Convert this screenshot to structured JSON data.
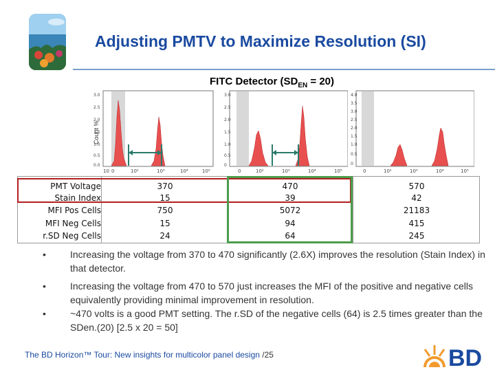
{
  "header": {
    "title": "Adjusting PMTV to Maximize Resolution (SI)"
  },
  "subtitle": {
    "prefix": "FITC Detector (SD",
    "sub": "EN",
    "suffix": " = 20)"
  },
  "plots": [
    {
      "ylabel": "Count %",
      "yticks": [
        "0.0",
        "0.5",
        "1.0",
        "1.5",
        "2.0",
        "2.5",
        "3.0"
      ],
      "xticks": [
        "10",
        "0",
        "10²",
        "10³",
        "10⁴",
        "10⁵"
      ]
    },
    {
      "ylabel": "",
      "yticks": [
        "0",
        "0.5",
        "1.0",
        "1.5",
        "2.0",
        "2.5",
        "3.0"
      ],
      "xticks": [
        "0",
        "10²",
        "10³",
        "10⁴",
        "10⁵"
      ]
    },
    {
      "ylabel": "",
      "yticks": [
        "0",
        "0.5",
        "1.0",
        "1.5",
        "2.0",
        "2.5",
        "3.0",
        "3.5",
        "4.0"
      ],
      "xticks": [
        "0",
        "10²",
        "10³",
        "10⁴",
        "10⁵"
      ]
    }
  ],
  "table": {
    "rows": [
      {
        "label": "PMT Voltage",
        "values": [
          "370",
          "470",
          "570"
        ]
      },
      {
        "label": "Stain Index",
        "values": [
          "15",
          "39",
          "42"
        ]
      },
      {
        "label": "MFI Pos Cells",
        "values": [
          "750",
          "5072",
          "21183"
        ]
      },
      {
        "label": "MFI Neg Cells",
        "values": [
          "15",
          "94",
          "415"
        ]
      },
      {
        "label": "r.SD Neg Cells",
        "values": [
          "24",
          "64",
          "245"
        ]
      }
    ]
  },
  "bullets": [
    {
      "marker": "•",
      "text": "Increasing  the voltage from 370 to 470 significantly (2.6X) improves the resolution (Stain Index) in that detector."
    },
    {
      "marker": "•",
      "text": "Increasing  the voltage from 470 to 570  just increases the MFI of the positive and negative cells equivalently providing minimal improvement in resolution."
    },
    {
      "marker": "•",
      "text": "~470 volts is a good PMT setting.  The r.SD of the negative cells (64) is 2.5 times greater than the SDen.(20) [2.5 x 20 = 50]"
    }
  ],
  "footer": {
    "text": "The BD Horizon™ Tour: New insights for multicolor panel design",
    "page": " /25"
  },
  "brand": {
    "name": "BD",
    "color": "#1a4aa0"
  },
  "colors": {
    "histogram": "#e85050",
    "arrow": "#2a7a6a",
    "highlight_red": "#b21e1e",
    "highlight_green": "#4c9c4c"
  }
}
